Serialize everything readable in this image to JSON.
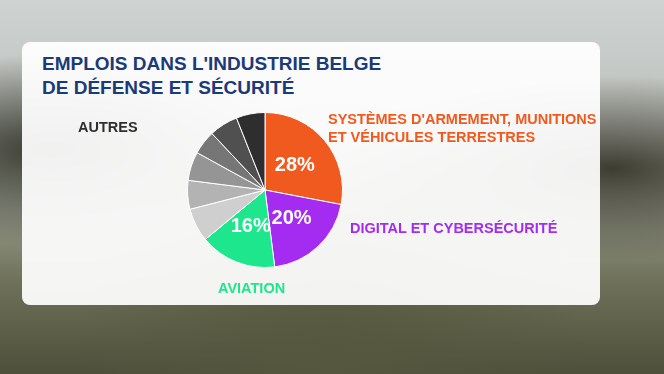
{
  "chart_data": {
    "type": "pie",
    "title": [
      "EMPLOIS DANS L'INDUSTRIE BELGE",
      "DE DÉFENSE ET SÉCURITÉ"
    ],
    "categories": [
      "SYSTÈMES D'ARMEMENT, MUNITIONS ET VÉHICULES TERRESTRES",
      "DIGITAL ET CYBERSÉCURITÉ",
      "AVIATION",
      null,
      null,
      null,
      null,
      null,
      "AUTRES"
    ],
    "values": [
      28,
      20,
      16,
      7,
      6,
      6,
      5,
      6,
      6
    ],
    "value_labels": [
      "28%",
      "20%",
      "16%",
      null,
      null,
      null,
      null,
      null,
      null
    ],
    "colors": [
      "#f05a1e",
      "#a32cf0",
      "#1ee68c",
      "#cfcfcf",
      "#b3b3b3",
      "#959595",
      "#767676",
      "#505050",
      "#2e2e2e"
    ],
    "data_labels": true
  }
}
